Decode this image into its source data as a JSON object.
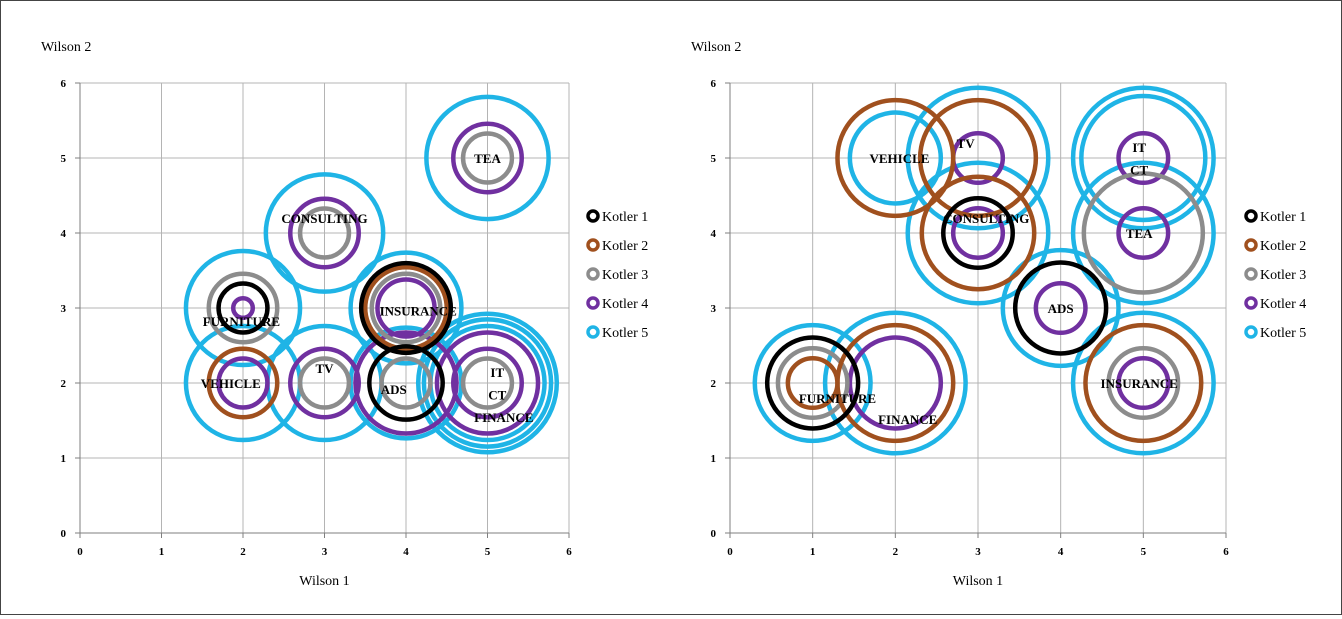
{
  "colors": {
    "Kotler 1": "#000000",
    "Kotler 2": "#a0501e",
    "Kotler 3": "#8c8c8c",
    "Kotler 4": "#7030a0",
    "Kotler 5": "#1fb4e6",
    "grid": "#b4b4b4",
    "axis": "#7f7f7f"
  },
  "chart_data": [
    {
      "type": "scatter",
      "ylabel": "Wilson 2",
      "xlabel": "Wilson 1",
      "xlim": [
        0,
        6
      ],
      "ylim": [
        0,
        6
      ],
      "xticks": [
        "0",
        "1",
        "2",
        "3",
        "4",
        "5",
        "6"
      ],
      "yticks": [
        "0",
        "1",
        "2",
        "3",
        "4",
        "5",
        "6"
      ],
      "grid": true,
      "legend": {
        "position": "right",
        "entries": [
          "Kotler 1",
          "Kotler 2",
          "Kotler 3",
          "Kotler 4",
          "Kotler 5"
        ]
      },
      "series": [
        {
          "name": "Kotler 1",
          "points": [
            {
              "label": "FURNITURE",
              "x": 2,
              "y": 3,
              "r": 0.3
            },
            {
              "label": "INSURANCE",
              "x": 4,
              "y": 3,
              "r": 0.55
            },
            {
              "label": "ADS",
              "x": 4,
              "y": 2,
              "r": 0.45
            }
          ]
        },
        {
          "name": "Kotler 2",
          "points": [
            {
              "label": "VEHICLE",
              "x": 2,
              "y": 2,
              "r": 0.42
            },
            {
              "label": "INSURANCE",
              "x": 4,
              "y": 3,
              "r": 0.5
            }
          ]
        },
        {
          "name": "Kotler 3",
          "points": [
            {
              "label": "TEA",
              "x": 5,
              "y": 5,
              "r": 0.3
            },
            {
              "label": "CONSULTING",
              "x": 3,
              "y": 4,
              "r": 0.3
            },
            {
              "label": "FURNITURE",
              "x": 2,
              "y": 3,
              "r": 0.42
            },
            {
              "label": "INSURANCE",
              "x": 4,
              "y": 3,
              "r": 0.42
            },
            {
              "label": "TV",
              "x": 3,
              "y": 2,
              "r": 0.3
            },
            {
              "label": "ADS",
              "x": 4,
              "y": 2,
              "r": 0.3
            },
            {
              "label": "IT",
              "x": 5,
              "y": 2,
              "r": 0.3
            }
          ]
        },
        {
          "name": "Kotler 4",
          "points": [
            {
              "label": "TEA",
              "x": 5,
              "y": 5,
              "r": 0.42
            },
            {
              "label": "CONSULTING",
              "x": 3,
              "y": 4,
              "r": 0.42
            },
            {
              "label": "FURNITURE",
              "x": 2,
              "y": 3,
              "r": 0.12
            },
            {
              "label": "INSURANCE",
              "x": 4,
              "y": 3,
              "r": 0.35
            },
            {
              "label": "VEHICLE",
              "x": 2,
              "y": 2,
              "r": 0.3
            },
            {
              "label": "TV",
              "x": 3,
              "y": 2,
              "r": 0.42
            },
            {
              "label": "ADS",
              "x": 4,
              "y": 2,
              "r": 0.62
            },
            {
              "label": "CT",
              "x": 5,
              "y": 2,
              "r": 0.42
            },
            {
              "label": "FINANCE",
              "x": 5,
              "y": 2,
              "r": 0.62
            }
          ]
        },
        {
          "name": "Kotler 5",
          "points": [
            {
              "label": "TEA",
              "x": 5,
              "y": 5,
              "r": 0.75
            },
            {
              "label": "CONSULTING",
              "x": 3,
              "y": 4,
              "r": 0.72
            },
            {
              "label": "FURNITURE",
              "x": 2,
              "y": 3,
              "r": 0.7
            },
            {
              "label": "INSURANCE",
              "x": 4,
              "y": 3,
              "r": 0.68
            },
            {
              "label": "VEHICLE",
              "x": 2,
              "y": 2,
              "r": 0.7
            },
            {
              "label": "TV",
              "x": 3,
              "y": 2,
              "r": 0.7
            },
            {
              "label": "ADS",
              "x": 4,
              "y": 2,
              "r": 0.68
            },
            {
              "label": "IT",
              "x": 5,
              "y": 2,
              "r": 0.7
            },
            {
              "label": "CT",
              "x": 5,
              "y": 2,
              "r": 0.78
            },
            {
              "label": "FINANCE",
              "x": 5,
              "y": 2,
              "r": 0.85
            }
          ]
        }
      ],
      "labels": [
        {
          "text": "TEA",
          "x": 5,
          "y": 5
        },
        {
          "text": "CONSULTING",
          "x": 3,
          "y": 4.2
        },
        {
          "text": "FURNITURE",
          "x": 1.98,
          "y": 2.83
        },
        {
          "text": "INSURANCE",
          "x": 4.15,
          "y": 2.97
        },
        {
          "text": "VEHICLE",
          "x": 1.85,
          "y": 2
        },
        {
          "text": "TV",
          "x": 3,
          "y": 2.2
        },
        {
          "text": "ADS",
          "x": 3.85,
          "y": 1.92
        },
        {
          "text": "IT",
          "x": 5.12,
          "y": 2.15
        },
        {
          "text": "CT",
          "x": 5.12,
          "y": 1.85
        },
        {
          "text": "FINANCE",
          "x": 5.2,
          "y": 1.55
        }
      ]
    },
    {
      "type": "scatter",
      "ylabel": "Wilson 2",
      "xlabel": "Wilson 1",
      "xlim": [
        0,
        6
      ],
      "ylim": [
        0,
        6
      ],
      "xticks": [
        "0",
        "1",
        "2",
        "3",
        "4",
        "5",
        "6"
      ],
      "yticks": [
        "0",
        "1",
        "2",
        "3",
        "4",
        "5",
        "6"
      ],
      "grid": true,
      "legend": {
        "position": "right",
        "entries": [
          "Kotler 1",
          "Kotler 2",
          "Kotler 3",
          "Kotler 4",
          "Kotler 5"
        ]
      },
      "series": [
        {
          "name": "Kotler 1",
          "points": [
            {
              "label": "CONSULTING",
              "x": 3,
              "y": 4,
              "r": 0.42
            },
            {
              "label": "ADS",
              "x": 4,
              "y": 3,
              "r": 0.55
            },
            {
              "label": "FURNITURE",
              "x": 1,
              "y": 2,
              "r": 0.55
            }
          ]
        },
        {
          "name": "Kotler 2",
          "points": [
            {
              "label": "VEHICLE",
              "x": 2,
              "y": 5,
              "r": 0.7
            },
            {
              "label": "TV",
              "x": 3,
              "y": 5,
              "r": 0.7
            },
            {
              "label": "CONSULTING",
              "x": 3,
              "y": 4,
              "r": 0.68
            },
            {
              "label": "FURNITURE",
              "x": 1,
              "y": 2,
              "r": 0.3
            },
            {
              "label": "FINANCE",
              "x": 2,
              "y": 2,
              "r": 0.7
            },
            {
              "label": "INSURANCE",
              "x": 5,
              "y": 2,
              "r": 0.7
            }
          ]
        },
        {
          "name": "Kotler 3",
          "points": [
            {
              "label": "TEA",
              "x": 5,
              "y": 4,
              "r": 0.72
            },
            {
              "label": "FURNITURE",
              "x": 1,
              "y": 2,
              "r": 0.42
            },
            {
              "label": "INSURANCE",
              "x": 5,
              "y": 2,
              "r": 0.42
            }
          ]
        },
        {
          "name": "Kotler 4",
          "points": [
            {
              "label": "TV",
              "x": 3,
              "y": 5,
              "r": 0.3
            },
            {
              "label": "IT",
              "x": 5,
              "y": 5,
              "r": 0.3
            },
            {
              "label": "CONSULTING",
              "x": 3,
              "y": 4,
              "r": 0.3
            },
            {
              "label": "TEA",
              "x": 5,
              "y": 4,
              "r": 0.3
            },
            {
              "label": "ADS",
              "x": 4,
              "y": 3,
              "r": 0.3
            },
            {
              "label": "FINANCE",
              "x": 2,
              "y": 2,
              "r": 0.55
            },
            {
              "label": "INSURANCE",
              "x": 5,
              "y": 2,
              "r": 0.3
            }
          ]
        },
        {
          "name": "Kotler 5",
          "points": [
            {
              "label": "VEHICLE",
              "x": 2,
              "y": 5,
              "r": 0.55
            },
            {
              "label": "TV",
              "x": 3,
              "y": 5,
              "r": 0.85
            },
            {
              "label": "IT",
              "x": 5,
              "y": 5,
              "r": 0.75
            },
            {
              "label": "CT",
              "x": 5,
              "y": 5,
              "r": 0.85
            },
            {
              "label": "CONSULTING",
              "x": 3,
              "y": 4,
              "r": 0.85
            },
            {
              "label": "TEA",
              "x": 5,
              "y": 4,
              "r": 0.85
            },
            {
              "label": "ADS",
              "x": 4,
              "y": 3,
              "r": 0.7
            },
            {
              "label": "FURNITURE",
              "x": 1,
              "y": 2,
              "r": 0.7
            },
            {
              "label": "FINANCE",
              "x": 2,
              "y": 2,
              "r": 0.85
            },
            {
              "label": "INSURANCE",
              "x": 5,
              "y": 2,
              "r": 0.85
            }
          ]
        }
      ],
      "labels": [
        {
          "text": "VEHICLE",
          "x": 2.05,
          "y": 5
        },
        {
          "text": "TV",
          "x": 2.85,
          "y": 5.2
        },
        {
          "text": "IT",
          "x": 4.95,
          "y": 5.15
        },
        {
          "text": "CT",
          "x": 4.95,
          "y": 4.85
        },
        {
          "text": "CONSULTING",
          "x": 3.1,
          "y": 4.2
        },
        {
          "text": "TEA",
          "x": 4.95,
          "y": 4
        },
        {
          "text": "ADS",
          "x": 4,
          "y": 3
        },
        {
          "text": "FURNITURE",
          "x": 1.3,
          "y": 1.8
        },
        {
          "text": "FINANCE",
          "x": 2.15,
          "y": 1.52
        },
        {
          "text": "INSURANCE",
          "x": 4.95,
          "y": 2
        }
      ]
    }
  ]
}
